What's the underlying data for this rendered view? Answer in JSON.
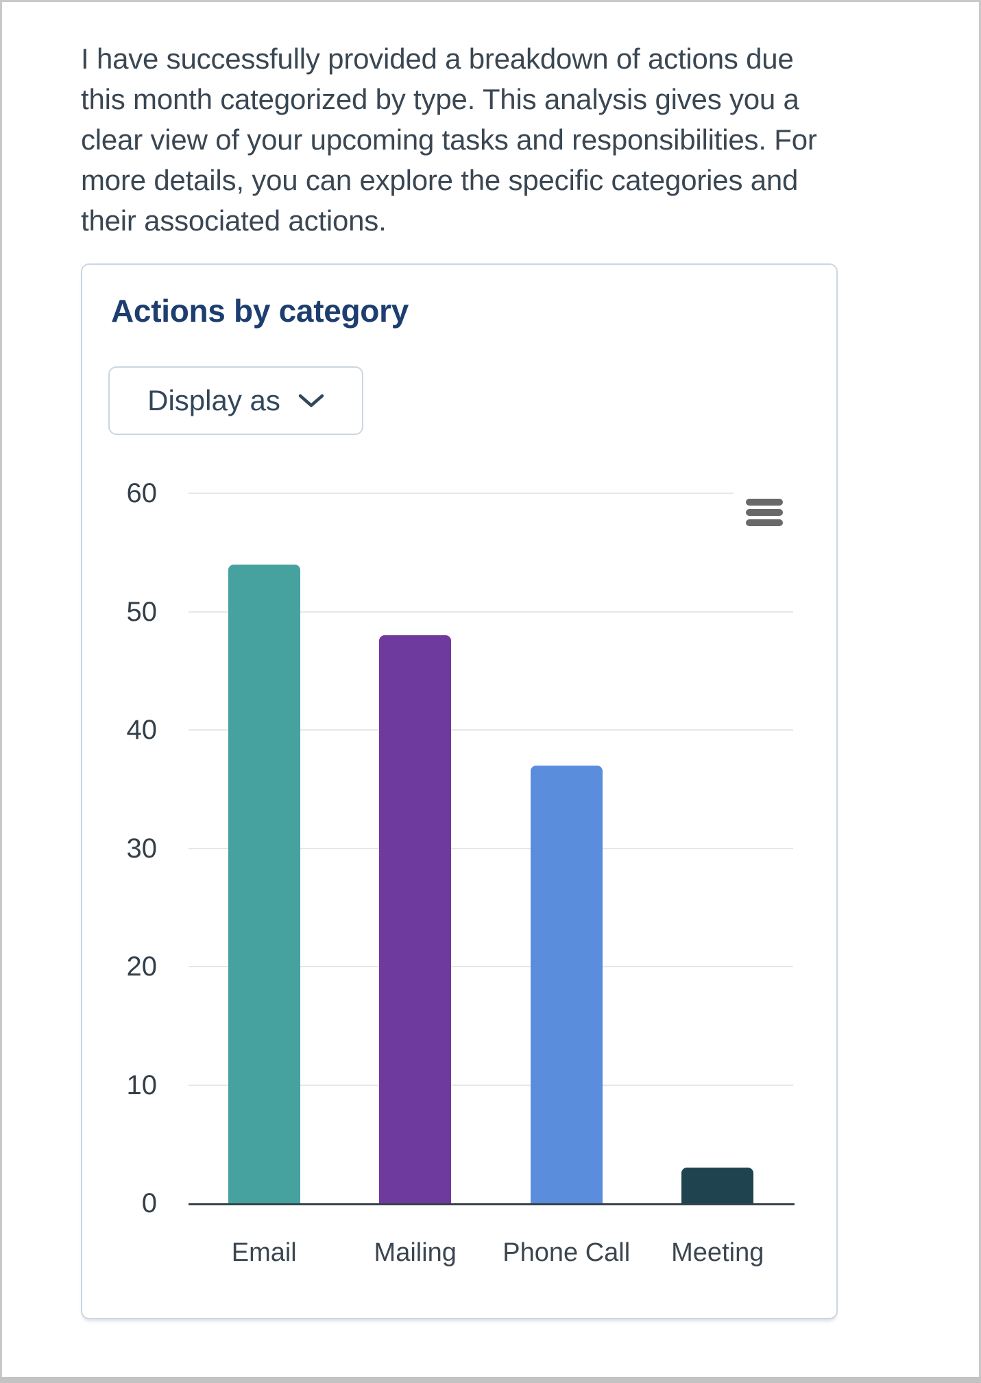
{
  "intro": {
    "lines": [
      "I have successfully provided a breakdown of actions due",
      "this month categorized by type. This analysis gives you a",
      "clear view of your upcoming tasks and responsibilities. For",
      "more details, you can explore the specific categories and",
      "their associated actions."
    ]
  },
  "card": {
    "title": "Actions by category",
    "display_as_label": "Display as"
  },
  "chart_data": {
    "type": "bar",
    "title": "Actions by category",
    "categories": [
      "Email",
      "Mailing",
      "Phone Call",
      "Meeting"
    ],
    "values": [
      54,
      48,
      37,
      3
    ],
    "bar_colors": [
      "#45a29f",
      "#6f3a9e",
      "#5a8ddc",
      "#1f4450"
    ],
    "xlabel": "",
    "ylabel": "",
    "ylim": [
      0,
      60
    ],
    "yticks": [
      0,
      10,
      20,
      30,
      40,
      50,
      60
    ],
    "grid": true,
    "legend": false,
    "context_menu_icon": "hamburger-icon"
  },
  "colors": {
    "title_navy": "#1d3e6f",
    "body_text": "#3a4753",
    "card_border": "#cbd6e2",
    "grid_line": "#e7e7e7",
    "axis_line": "#37424b",
    "tick_text": "#333f49",
    "icon_gray": "#696969",
    "window_frame": "#c9c9c9"
  }
}
